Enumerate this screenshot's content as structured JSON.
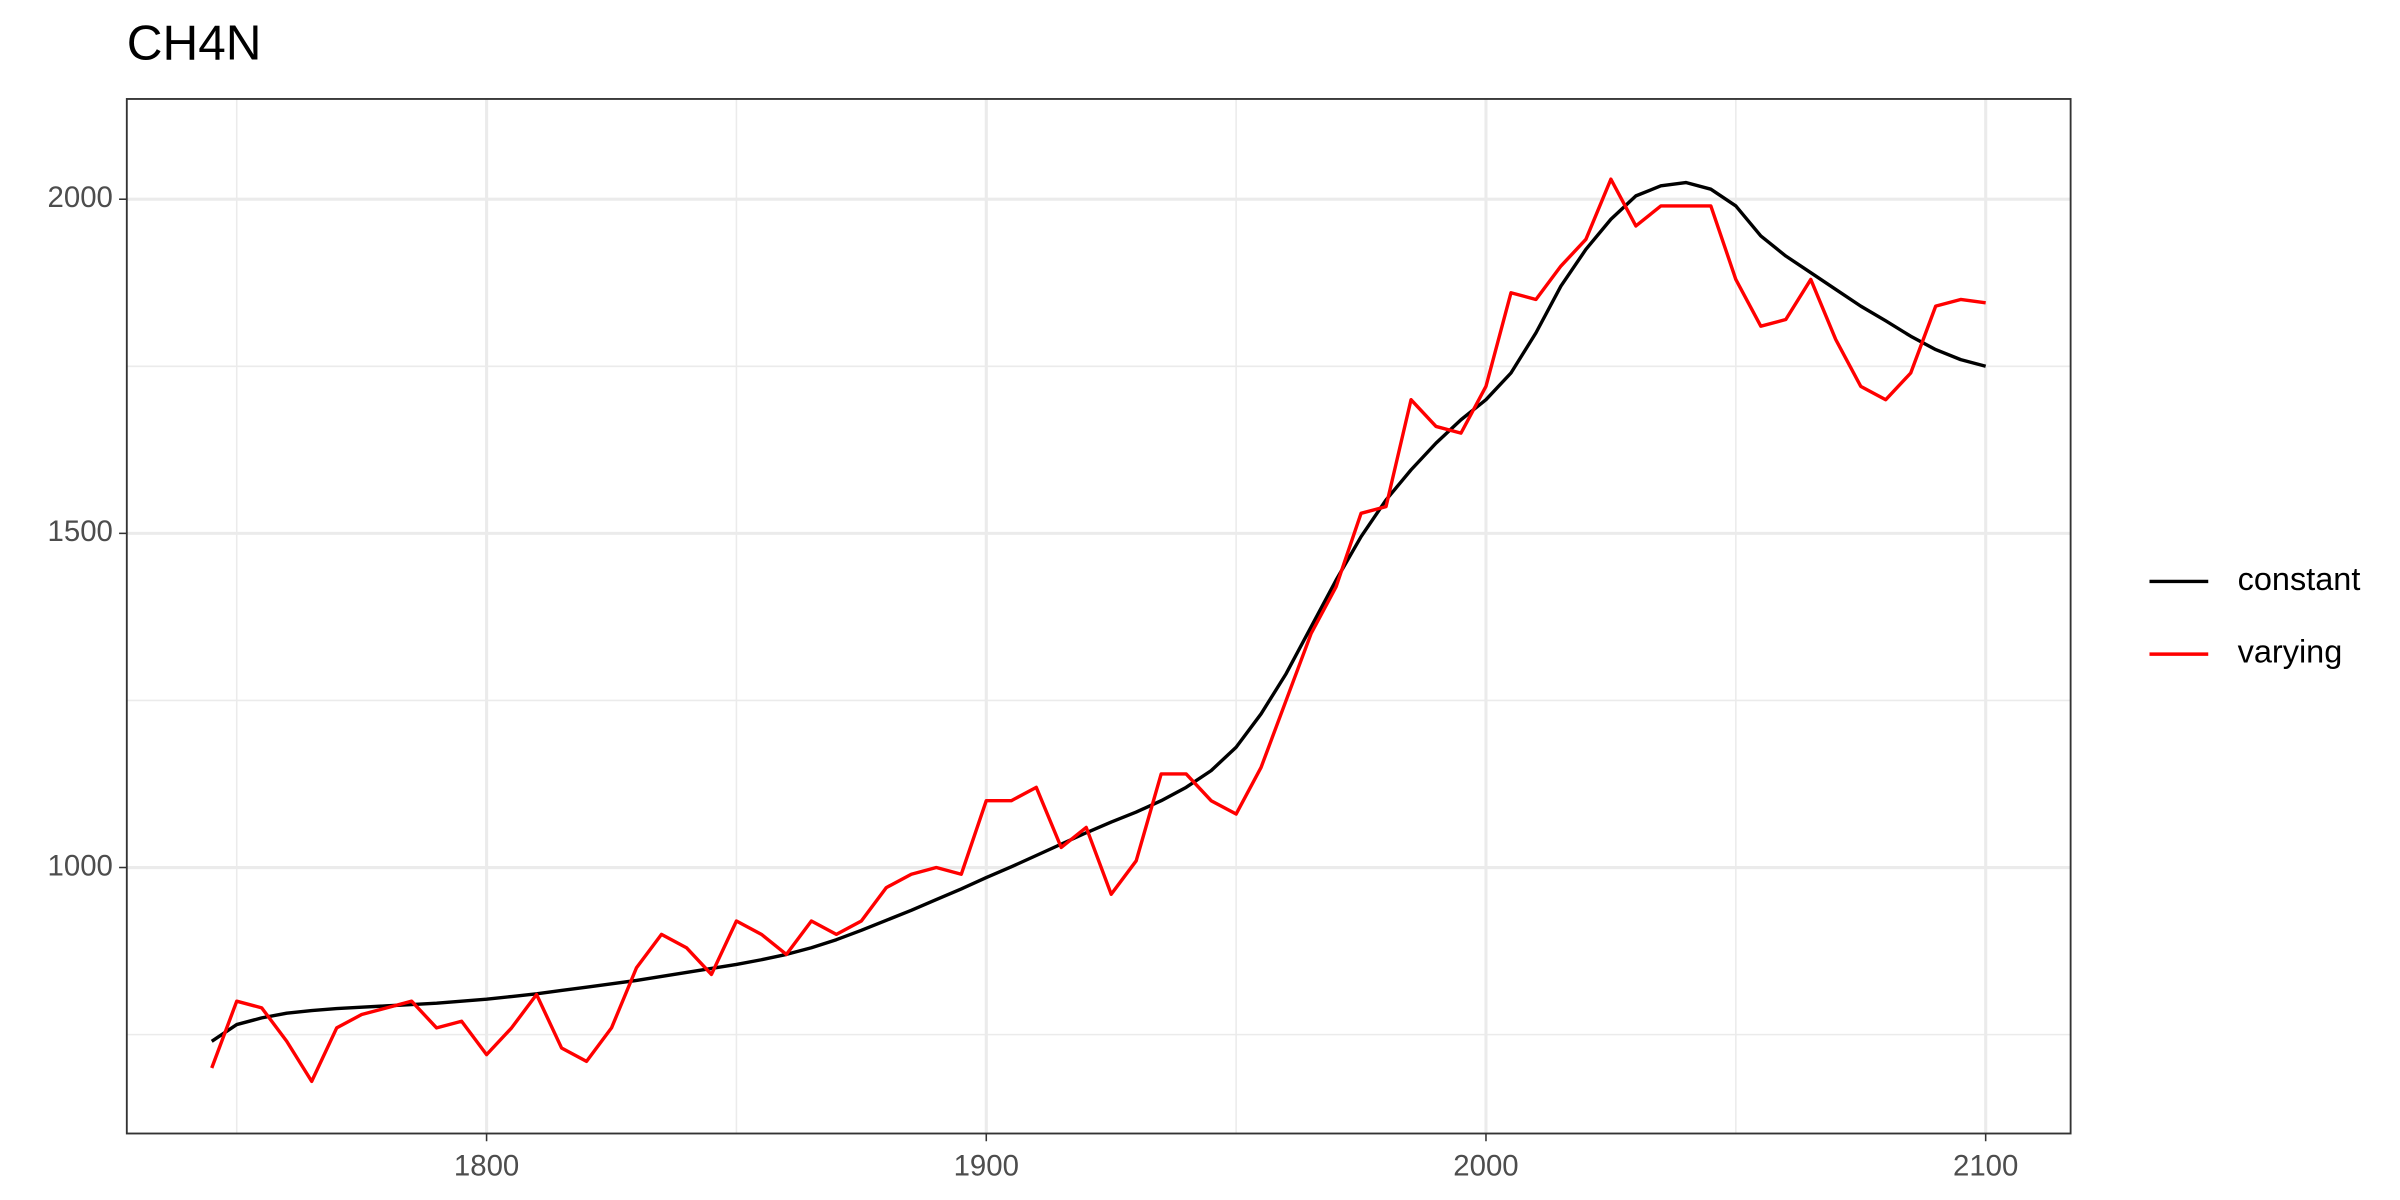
{
  "chart_data": {
    "type": "line",
    "title": "CH4N",
    "x": [
      1745,
      1750,
      1755,
      1760,
      1765,
      1770,
      1775,
      1780,
      1785,
      1790,
      1795,
      1800,
      1805,
      1810,
      1815,
      1820,
      1825,
      1830,
      1835,
      1840,
      1845,
      1850,
      1855,
      1860,
      1865,
      1870,
      1875,
      1880,
      1885,
      1890,
      1895,
      1900,
      1905,
      1910,
      1915,
      1920,
      1925,
      1930,
      1935,
      1940,
      1945,
      1950,
      1955,
      1960,
      1965,
      1970,
      1975,
      1980,
      1985,
      1990,
      1995,
      2000,
      2005,
      2010,
      2015,
      2020,
      2025,
      2030,
      2035,
      2040,
      2045,
      2050,
      2055,
      2060,
      2065,
      2070,
      2075,
      2080,
      2085,
      2090,
      2095,
      2100
    ],
    "series": [
      {
        "name": "constant",
        "color": "#000000",
        "values": [
          740,
          765,
          775,
          782,
          786,
          789,
          791,
          793,
          795,
          797,
          800,
          803,
          807,
          811,
          816,
          821,
          826,
          831,
          837,
          843,
          849,
          855,
          862,
          870,
          880,
          892,
          906,
          921,
          936,
          952,
          968,
          985,
          1001,
          1018,
          1035,
          1052,
          1068,
          1083,
          1100,
          1120,
          1145,
          1180,
          1230,
          1290,
          1360,
          1430,
          1495,
          1550,
          1595,
          1635,
          1670,
          1700,
          1740,
          1800,
          1870,
          1925,
          1970,
          2005,
          2020,
          2025,
          2015,
          1990,
          1945,
          1915,
          1890,
          1865,
          1840,
          1818,
          1795,
          1775,
          1760,
          1750
        ]
      },
      {
        "name": "varying",
        "color": "#ff0000",
        "values": [
          700,
          800,
          790,
          740,
          680,
          760,
          780,
          790,
          800,
          760,
          770,
          720,
          760,
          810,
          730,
          710,
          760,
          850,
          900,
          880,
          840,
          920,
          900,
          870,
          920,
          900,
          920,
          970,
          990,
          1000,
          990,
          1100,
          1100,
          1120,
          1030,
          1060,
          960,
          1010,
          1140,
          1140,
          1100,
          1080,
          1150,
          1250,
          1350,
          1420,
          1530,
          1540,
          1700,
          1660,
          1650,
          1720,
          1860,
          1850,
          1900,
          1940,
          2030,
          1960,
          1990,
          1990,
          1990,
          1880,
          1810,
          1820,
          1880,
          1790,
          1720,
          1700,
          1740,
          1840,
          1850,
          1845
        ]
      }
    ],
    "xlim": [
      1728,
      2117
    ],
    "xticks": [
      1800,
      1900,
      2000,
      2100
    ],
    "x_minor_ticks": [
      1750,
      1850,
      1950,
      2050
    ],
    "ylim": [
      602,
      2150
    ],
    "yticks": [
      1000,
      1500,
      2000
    ],
    "y_minor_ticks": [
      750,
      1250,
      1750
    ],
    "grid": true,
    "legend": "right"
  }
}
